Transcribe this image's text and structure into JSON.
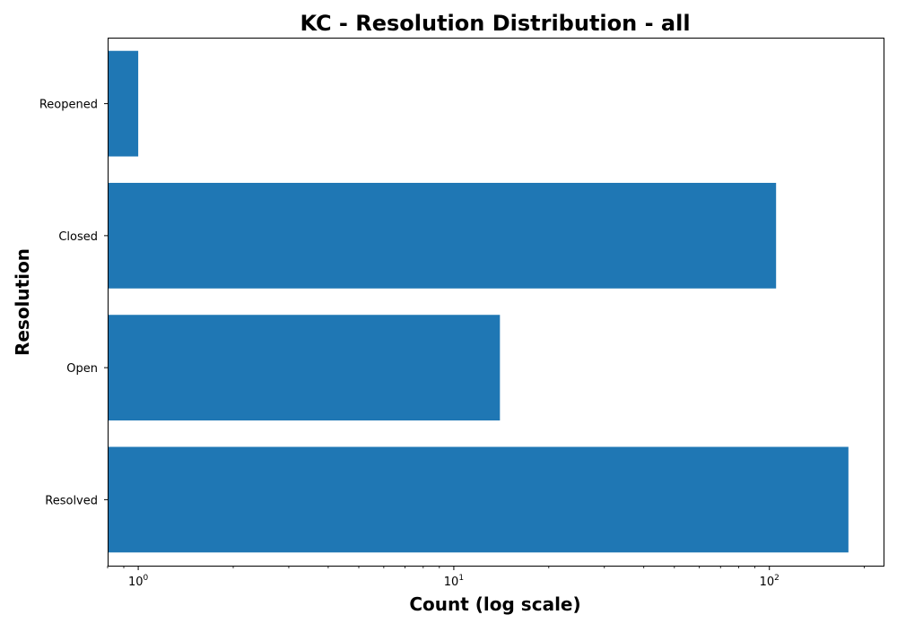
{
  "chart_data": {
    "type": "bar",
    "orientation": "horizontal",
    "title": "KC - Resolution Distribution - all",
    "xlabel": "Count (log scale)",
    "ylabel": "Resolution",
    "x_scale": "log",
    "xlim": [
      0.8,
      230
    ],
    "x_ticks": [
      {
        "base": "10",
        "exp": "0",
        "value": 1
      },
      {
        "base": "10",
        "exp": "1",
        "value": 10
      },
      {
        "base": "10",
        "exp": "2",
        "value": 100
      }
    ],
    "categories": [
      "Resolved",
      "Open",
      "Closed",
      "Reopened"
    ],
    "values": [
      178,
      14,
      105,
      1
    ],
    "bar_color": "#1f77b4",
    "grid": false,
    "legend": "none"
  }
}
